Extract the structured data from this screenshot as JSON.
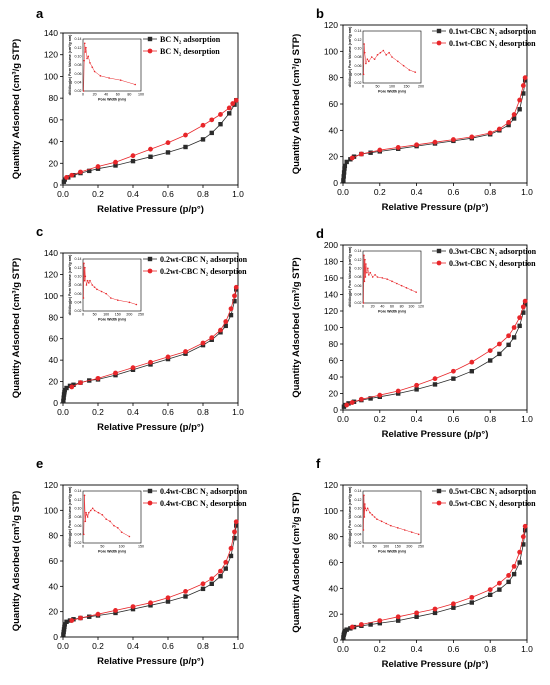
{
  "figure": {
    "colors": {
      "adsorption": "#2b2b2b",
      "desorption": "#e8262a",
      "inset_line": "#e8262a"
    },
    "xlabel": "Relative Pressure (p/p°)",
    "ylabel": "Quantity Adsorbed (cm³/g STP)",
    "inset_xlabel": "Pore Width (nm)",
    "inset_ylabel": "dV/dlog(w) Pore Volume (cm³/g·nm)"
  },
  "chart_data": [
    {
      "panel": "a",
      "type": "line",
      "legend": [
        "BC N₂ adsorption",
        "BC N₂ desorption"
      ],
      "xlim": [
        0,
        1
      ],
      "ylim": [
        0,
        140
      ],
      "xticks": [
        "0.0",
        "0.2",
        "0.4",
        "0.6",
        "0.8",
        "1.0"
      ],
      "yticks": [
        "0",
        "20",
        "40",
        "60",
        "80",
        "100",
        "120",
        "140"
      ],
      "adsorption": {
        "x": [
          0.005,
          0.01,
          0.03,
          0.06,
          0.1,
          0.15,
          0.2,
          0.3,
          0.4,
          0.5,
          0.6,
          0.7,
          0.8,
          0.85,
          0.9,
          0.95,
          0.98,
          0.99
        ],
        "y": [
          3,
          5,
          7,
          9,
          11,
          13,
          15,
          18,
          22,
          26,
          30,
          35,
          42,
          48,
          56,
          66,
          74,
          78
        ]
      },
      "desorption": {
        "x": [
          0.99,
          0.97,
          0.95,
          0.9,
          0.85,
          0.8,
          0.7,
          0.6,
          0.5,
          0.4,
          0.3,
          0.2,
          0.1,
          0.05,
          0.02
        ],
        "y": [
          78,
          75,
          71,
          65,
          60,
          55,
          46,
          39,
          33,
          27,
          21,
          17,
          12,
          9,
          7
        ]
      },
      "inset": {
        "xlim": [
          0,
          100
        ],
        "ylim": [
          0.02,
          0.14
        ],
        "xticks": [
          "0",
          "20",
          "40",
          "60",
          "80",
          "100"
        ],
        "yticks": [
          "0.02",
          "0.04",
          "0.06",
          "0.08",
          "0.10",
          "0.12",
          "0.14"
        ],
        "x": [
          1,
          2,
          3,
          4,
          5,
          7,
          9,
          12,
          16,
          20,
          30,
          45,
          65,
          90
        ],
        "y": [
          0.02,
          0.09,
          0.13,
          0.11,
          0.12,
          0.095,
          0.1,
          0.085,
          0.075,
          0.065,
          0.055,
          0.05,
          0.045,
          0.035
        ]
      }
    },
    {
      "panel": "b",
      "type": "line",
      "legend": [
        "0.1wt-CBC N₂ adsorption",
        "0.1wt-CBC N₂ desorption"
      ],
      "xlim": [
        0,
        1
      ],
      "ylim": [
        0,
        120
      ],
      "xticks": [
        "0.0",
        "0.2",
        "0.4",
        "0.6",
        "0.8",
        "1.0"
      ],
      "yticks": [
        "0",
        "20",
        "40",
        "60",
        "80",
        "100",
        "120"
      ],
      "adsorption": {
        "x": [
          0.002,
          0.004,
          0.006,
          0.008,
          0.01,
          0.02,
          0.04,
          0.06,
          0.1,
          0.15,
          0.2,
          0.3,
          0.4,
          0.5,
          0.6,
          0.7,
          0.8,
          0.85,
          0.9,
          0.93,
          0.96,
          0.98,
          0.99
        ],
        "y": [
          2,
          5,
          8,
          11,
          13,
          16,
          18,
          20,
          22,
          23,
          24,
          26,
          28,
          30,
          32,
          34,
          37,
          40,
          44,
          49,
          56,
          68,
          78
        ]
      },
      "desorption": {
        "x": [
          0.99,
          0.98,
          0.96,
          0.93,
          0.9,
          0.85,
          0.8,
          0.7,
          0.6,
          0.5,
          0.4,
          0.3,
          0.2,
          0.1,
          0.05
        ],
        "y": [
          80,
          74,
          63,
          52,
          46,
          41,
          38,
          35,
          33,
          31,
          29,
          27,
          25,
          22,
          19
        ]
      },
      "inset": {
        "xlim": [
          0,
          200
        ],
        "ylim": [
          0.02,
          0.14
        ],
        "xticks": [
          "0",
          "50",
          "100",
          "150",
          "200"
        ],
        "yticks": [
          "0.02",
          "0.04",
          "0.06",
          "0.08",
          "0.10",
          "0.12",
          "0.14"
        ],
        "x": [
          2,
          4,
          6,
          10,
          15,
          20,
          30,
          40,
          50,
          60,
          70,
          80,
          90,
          100,
          120,
          140,
          160,
          180
        ],
        "y": [
          0.04,
          0.11,
          0.09,
          0.065,
          0.075,
          0.07,
          0.08,
          0.075,
          0.085,
          0.09,
          0.095,
          0.085,
          0.09,
          0.08,
          0.07,
          0.06,
          0.05,
          0.045
        ]
      }
    },
    {
      "panel": "c",
      "type": "line",
      "legend": [
        "0.2wt-CBC N₂ adsorption",
        "0.2wt-CBC N₂ desorption"
      ],
      "xlim": [
        0,
        1
      ],
      "ylim": [
        0,
        140
      ],
      "xticks": [
        "0.0",
        "0.2",
        "0.4",
        "0.6",
        "0.8",
        "1.0"
      ],
      "yticks": [
        "0",
        "20",
        "40",
        "60",
        "80",
        "100",
        "120",
        "140"
      ],
      "adsorption": {
        "x": [
          0.002,
          0.004,
          0.006,
          0.008,
          0.01,
          0.02,
          0.04,
          0.06,
          0.1,
          0.15,
          0.2,
          0.3,
          0.4,
          0.5,
          0.6,
          0.7,
          0.8,
          0.85,
          0.9,
          0.93,
          0.96,
          0.98,
          0.99
        ],
        "y": [
          2,
          5,
          8,
          10,
          12,
          14,
          16,
          17,
          19,
          21,
          22,
          26,
          31,
          36,
          41,
          46,
          54,
          59,
          66,
          72,
          82,
          95,
          106
        ]
      },
      "desorption": {
        "x": [
          0.99,
          0.98,
          0.96,
          0.93,
          0.9,
          0.85,
          0.8,
          0.7,
          0.6,
          0.5,
          0.4,
          0.3,
          0.2,
          0.1,
          0.05
        ],
        "y": [
          108,
          100,
          88,
          76,
          68,
          61,
          56,
          48,
          43,
          38,
          33,
          28,
          23,
          19,
          15
        ]
      },
      "inset": {
        "xlim": [
          0,
          250
        ],
        "ylim": [
          0.02,
          0.14
        ],
        "xticks": [
          "0",
          "50",
          "100",
          "150",
          "200",
          "250"
        ],
        "yticks": [
          "0.02",
          "0.04",
          "0.06",
          "0.08",
          "0.10",
          "0.12",
          "0.14"
        ],
        "x": [
          2,
          4,
          6,
          8,
          10,
          15,
          20,
          25,
          30,
          40,
          50,
          60,
          80,
          100,
          120,
          150,
          200,
          230
        ],
        "y": [
          0.05,
          0.13,
          0.09,
          0.12,
          0.1,
          0.08,
          0.09,
          0.085,
          0.09,
          0.08,
          0.075,
          0.07,
          0.065,
          0.06,
          0.05,
          0.045,
          0.04,
          0.035
        ]
      }
    },
    {
      "panel": "d",
      "type": "line",
      "legend": [
        "0.3wt-CBC N₂ adsorption",
        "0.3wt-CBC N₂ desorption"
      ],
      "xlim": [
        0,
        1
      ],
      "ylim": [
        0,
        200
      ],
      "xticks": [
        "0.0",
        "0.2",
        "0.4",
        "0.6",
        "0.8",
        "1.0"
      ],
      "yticks": [
        "0",
        "20",
        "40",
        "60",
        "80",
        "100",
        "120",
        "140",
        "160",
        "180",
        "200"
      ],
      "adsorption": {
        "x": [
          0.005,
          0.01,
          0.03,
          0.06,
          0.1,
          0.15,
          0.2,
          0.3,
          0.4,
          0.5,
          0.6,
          0.7,
          0.8,
          0.85,
          0.9,
          0.93,
          0.96,
          0.98,
          0.99
        ],
        "y": [
          4,
          6,
          8,
          10,
          12,
          14,
          16,
          20,
          25,
          31,
          38,
          47,
          60,
          68,
          79,
          88,
          102,
          118,
          128
        ]
      },
      "desorption": {
        "x": [
          0.99,
          0.98,
          0.96,
          0.93,
          0.9,
          0.85,
          0.8,
          0.7,
          0.6,
          0.5,
          0.4,
          0.3,
          0.2,
          0.1,
          0.05,
          0.02
        ],
        "y": [
          132,
          125,
          112,
          100,
          90,
          80,
          72,
          58,
          47,
          38,
          30,
          23,
          18,
          13,
          9,
          6
        ]
      },
      "inset": {
        "xlim": [
          0,
          120
        ],
        "ylim": [
          0.02,
          0.14
        ],
        "xticks": [
          "0",
          "20",
          "40",
          "60",
          "80",
          "100",
          "120"
        ],
        "yticks": [
          "0.02",
          "0.04",
          "0.06",
          "0.08",
          "0.10",
          "0.12",
          "0.14"
        ],
        "x": [
          1,
          2,
          3,
          4,
          5,
          6,
          8,
          10,
          12,
          15,
          20,
          25,
          30,
          40,
          50,
          60,
          70,
          80,
          90,
          100,
          110
        ],
        "y": [
          0.02,
          0.13,
          0.07,
          0.12,
          0.08,
          0.11,
          0.09,
          0.1,
          0.085,
          0.09,
          0.08,
          0.085,
          0.08,
          0.078,
          0.075,
          0.07,
          0.065,
          0.06,
          0.055,
          0.05,
          0.045
        ]
      }
    },
    {
      "panel": "e",
      "type": "line",
      "legend": [
        "0.4wt-CBC N₂ adsorption",
        "0.4wt-CBC N₂ desorption"
      ],
      "xlim": [
        0,
        1
      ],
      "ylim": [
        0,
        120
      ],
      "xticks": [
        "0.0",
        "0.2",
        "0.4",
        "0.6",
        "0.8",
        "1.0"
      ],
      "yticks": [
        "0",
        "20",
        "40",
        "60",
        "80",
        "100",
        "120"
      ],
      "adsorption": {
        "x": [
          0.002,
          0.004,
          0.006,
          0.008,
          0.01,
          0.02,
          0.04,
          0.06,
          0.1,
          0.15,
          0.2,
          0.3,
          0.4,
          0.5,
          0.6,
          0.7,
          0.8,
          0.85,
          0.9,
          0.93,
          0.96,
          0.98,
          0.99
        ],
        "y": [
          2,
          4,
          6,
          8,
          10,
          12,
          13,
          14,
          15,
          16,
          17,
          19,
          22,
          25,
          28,
          32,
          38,
          42,
          48,
          54,
          64,
          78,
          88
        ]
      },
      "desorption": {
        "x": [
          0.99,
          0.98,
          0.96,
          0.93,
          0.9,
          0.85,
          0.8,
          0.7,
          0.6,
          0.5,
          0.4,
          0.3,
          0.2,
          0.1,
          0.05
        ],
        "y": [
          91,
          83,
          70,
          59,
          52,
          46,
          42,
          36,
          31,
          27,
          24,
          21,
          18,
          15,
          13
        ]
      },
      "inset": {
        "xlim": [
          0,
          150
        ],
        "ylim": [
          0.02,
          0.14
        ],
        "xticks": [
          "0",
          "50",
          "100",
          "150"
        ],
        "yticks": [
          "0.02",
          "0.04",
          "0.06",
          "0.08",
          "0.10",
          "0.12",
          "0.14"
        ],
        "x": [
          2,
          4,
          6,
          8,
          10,
          12,
          15,
          20,
          25,
          30,
          40,
          50,
          60,
          70,
          80,
          90,
          100,
          120
        ],
        "y": [
          0.04,
          0.13,
          0.07,
          0.09,
          0.085,
          0.08,
          0.09,
          0.095,
          0.1,
          0.095,
          0.09,
          0.085,
          0.075,
          0.07,
          0.06,
          0.055,
          0.045,
          0.035
        ]
      }
    },
    {
      "panel": "f",
      "type": "line",
      "legend": [
        "0.5wt-CBC N₂ adsorption",
        "0.5wt-CBC N₂ desorption"
      ],
      "xlim": [
        0,
        1
      ],
      "ylim": [
        0,
        120
      ],
      "xticks": [
        "0.0",
        "0.2",
        "0.4",
        "0.6",
        "0.8",
        "1.0"
      ],
      "yticks": [
        "0",
        "20",
        "40",
        "60",
        "80",
        "100",
        "120"
      ],
      "adsorption": {
        "x": [
          0.002,
          0.004,
          0.006,
          0.008,
          0.01,
          0.02,
          0.04,
          0.06,
          0.1,
          0.15,
          0.2,
          0.3,
          0.4,
          0.5,
          0.6,
          0.7,
          0.8,
          0.85,
          0.9,
          0.93,
          0.96,
          0.98,
          0.99
        ],
        "y": [
          2,
          4,
          5,
          6,
          7,
          8,
          9,
          10,
          11,
          12,
          13,
          15,
          18,
          21,
          25,
          29,
          35,
          39,
          45,
          51,
          60,
          74,
          85
        ]
      },
      "desorption": {
        "x": [
          0.99,
          0.98,
          0.96,
          0.93,
          0.9,
          0.85,
          0.8,
          0.7,
          0.6,
          0.5,
          0.4,
          0.3,
          0.2,
          0.1,
          0.05
        ],
        "y": [
          88,
          80,
          68,
          57,
          50,
          44,
          39,
          33,
          28,
          24,
          21,
          18,
          15,
          12,
          10
        ]
      },
      "inset": {
        "xlim": [
          0,
          250
        ],
        "ylim": [
          0.02,
          0.14
        ],
        "xticks": [
          "0",
          "50",
          "100",
          "150",
          "200",
          "250"
        ],
        "yticks": [
          "0.02",
          "0.04",
          "0.06",
          "0.08",
          "0.10",
          "0.12",
          "0.14"
        ],
        "x": [
          2,
          4,
          6,
          8,
          10,
          15,
          20,
          30,
          40,
          50,
          60,
          80,
          100,
          120,
          150,
          180,
          210,
          240
        ],
        "y": [
          0.05,
          0.13,
          0.08,
          0.11,
          0.1,
          0.095,
          0.1,
          0.09,
          0.085,
          0.08,
          0.075,
          0.07,
          0.065,
          0.06,
          0.055,
          0.05,
          0.045,
          0.04
        ]
      }
    }
  ]
}
